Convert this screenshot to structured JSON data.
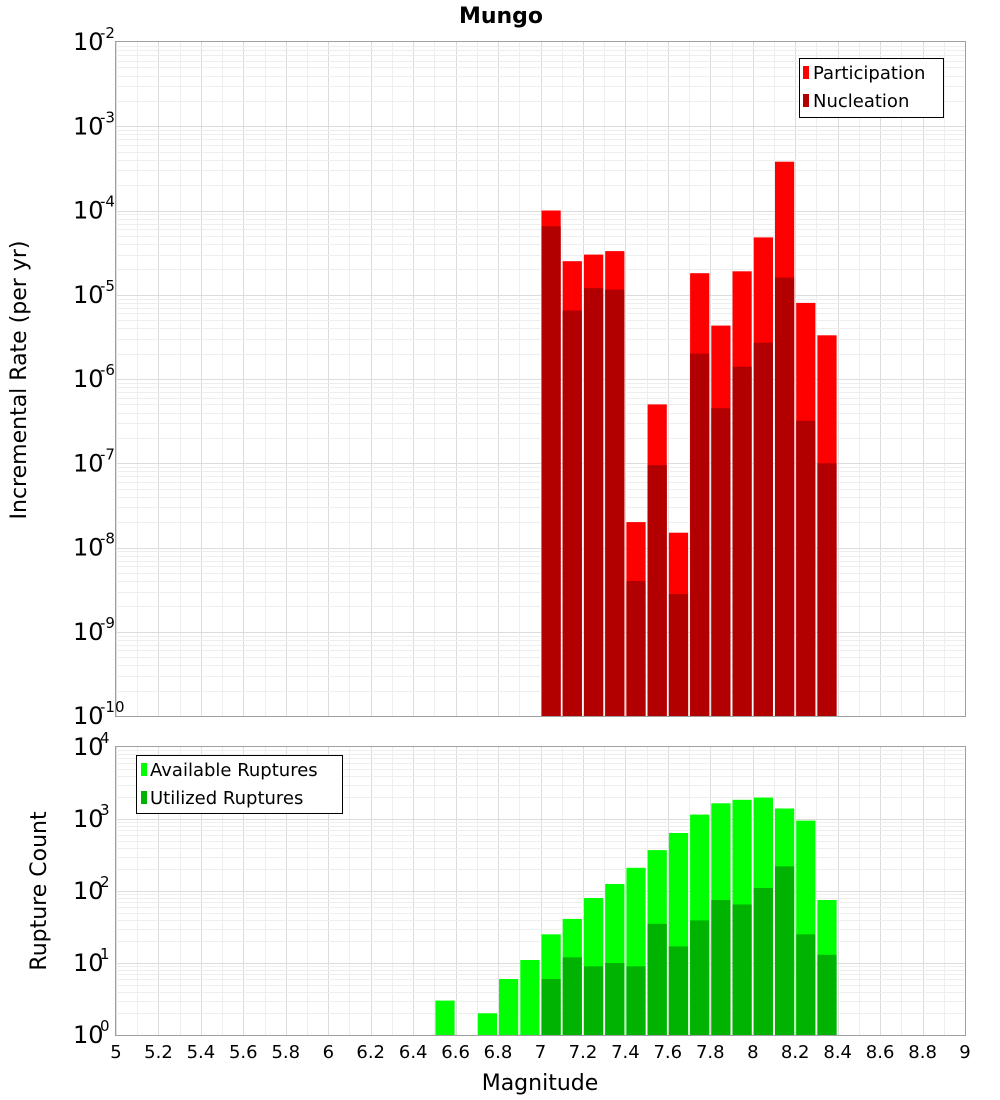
{
  "chart_data": [
    {
      "type": "bar",
      "title": "Mungo",
      "ylabel": "Incremental Rate (per yr)",
      "xlabel": "",
      "yscale": "log",
      "ylim_exp": [
        -10,
        -2
      ],
      "xlim": [
        5,
        9
      ],
      "bin_width": 0.1,
      "legend_position": "top-right",
      "series": [
        {
          "name": "Participation",
          "color": "#ff0000",
          "x": [
            7.05,
            7.15,
            7.25,
            7.35,
            7.45,
            7.55,
            7.65,
            7.75,
            7.85,
            7.95,
            8.05,
            8.15,
            8.25,
            8.35
          ],
          "values": [
            0.0001,
            2.5e-05,
            3e-05,
            3.3e-05,
            2e-08,
            5e-07,
            1.5e-08,
            1.8e-05,
            4.3e-06,
            1.9e-05,
            4.8e-05,
            0.00038,
            8e-06,
            3.3e-06
          ]
        },
        {
          "name": "Nucleation",
          "color": "#b20000",
          "x": [
            7.05,
            7.15,
            7.25,
            7.35,
            7.45,
            7.55,
            7.65,
            7.75,
            7.85,
            7.95,
            8.05,
            8.15,
            8.25,
            8.35
          ],
          "values": [
            6.5e-05,
            6.5e-06,
            1.2e-05,
            1.15e-05,
            4e-09,
            9.5e-08,
            2.8e-09,
            2e-06,
            4.5e-07,
            1.4e-06,
            2.7e-06,
            1.6e-05,
            3.2e-07,
            1e-07
          ]
        }
      ]
    },
    {
      "type": "bar",
      "title": "",
      "ylabel": "Rupture Count",
      "xlabel": "Magnitude",
      "yscale": "log",
      "ylim_exp": [
        0,
        4
      ],
      "xlim": [
        5,
        9
      ],
      "bin_width": 0.1,
      "legend_position": "top-left",
      "x_ticks": [
        "5",
        "5.2",
        "5.4",
        "5.6",
        "5.8",
        "6",
        "6.2",
        "6.4",
        "6.6",
        "6.8",
        "7",
        "7.2",
        "7.4",
        "7.6",
        "7.8",
        "8",
        "8.2",
        "8.4",
        "8.6",
        "8.8",
        "9"
      ],
      "series": [
        {
          "name": "Available Ruptures",
          "color": "#00ff00",
          "x": [
            6.55,
            6.75,
            6.85,
            6.95,
            7.05,
            7.15,
            7.25,
            7.35,
            7.45,
            7.55,
            7.65,
            7.75,
            7.85,
            7.95,
            8.05,
            8.15,
            8.25,
            8.35
          ],
          "values": [
            3,
            2,
            6,
            11,
            25,
            41,
            80,
            125,
            210,
            370,
            640,
            1150,
            1650,
            1850,
            1980,
            1400,
            950,
            75
          ]
        },
        {
          "name": "Utilized Ruptures",
          "color": "#00b300",
          "x": [
            7.05,
            7.15,
            7.25,
            7.35,
            7.45,
            7.55,
            7.65,
            7.75,
            7.85,
            7.95,
            8.05,
            8.15,
            8.25,
            8.35
          ],
          "values": [
            6,
            12,
            9,
            10,
            9,
            35,
            17,
            39,
            75,
            65,
            110,
            220,
            25,
            13
          ]
        }
      ]
    }
  ]
}
